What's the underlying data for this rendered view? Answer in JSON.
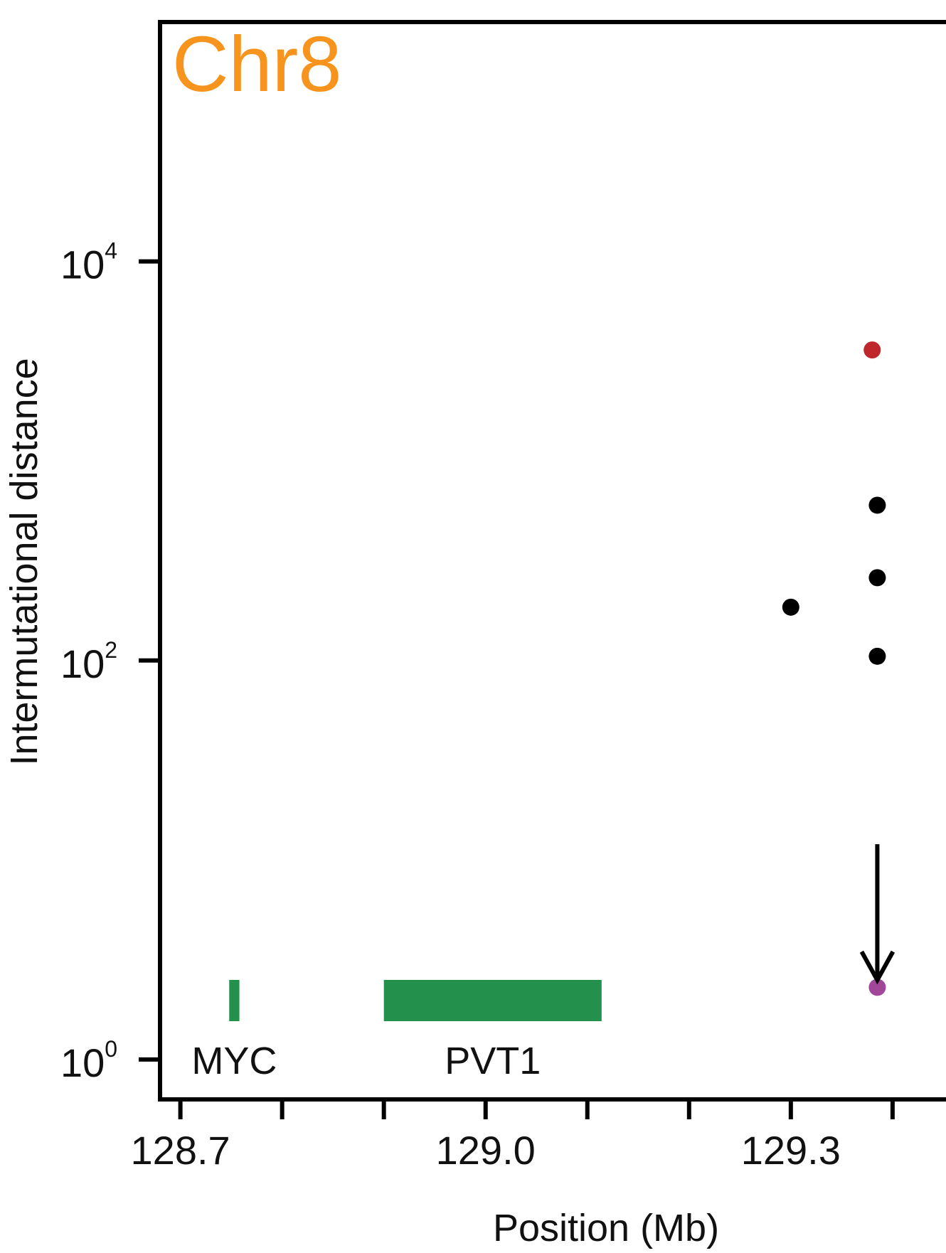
{
  "chart_data": {
    "type": "scatter",
    "title": "Chr8",
    "title_color": "#f7941d",
    "xlabel": "Position (Mb)",
    "ylabel": "Intermutational distance",
    "xlim": [
      128.68,
      129.47
    ],
    "ylim_log10": [
      -0.2,
      5.2
    ],
    "y_scale": "log",
    "x_ticks": [
      128.7,
      128.8,
      128.9,
      129.0,
      129.1,
      129.2,
      129.3,
      129.4
    ],
    "x_tick_labels": [
      {
        "value": 128.7,
        "label": "128.7"
      },
      {
        "value": 129.0,
        "label": "129.0"
      },
      {
        "value": 129.3,
        "label": "129.3"
      }
    ],
    "y_tick_labels": [
      {
        "exp": 0,
        "base": "10",
        "sup": "0"
      },
      {
        "exp": 2,
        "base": "10",
        "sup": "2"
      },
      {
        "exp": 4,
        "base": "10",
        "sup": "4"
      }
    ],
    "points": [
      {
        "x": 129.38,
        "y": 3600,
        "color": "#c0272d"
      },
      {
        "x": 129.385,
        "y": 600,
        "color": "#000000"
      },
      {
        "x": 129.385,
        "y": 260,
        "color": "#000000"
      },
      {
        "x": 129.3,
        "y": 185,
        "color": "#000000"
      },
      {
        "x": 129.385,
        "y": 105,
        "color": "#000000"
      },
      {
        "x": 129.385,
        "y": 2.3,
        "color": "#a0479a"
      }
    ],
    "genes": [
      {
        "name": "MYC",
        "start": 128.748,
        "end": 128.758
      },
      {
        "name": "PVT1",
        "start": 128.9,
        "end": 129.114
      }
    ],
    "gene_color": "#23904b",
    "arrow": {
      "x": 129.385,
      "from": 12,
      "to": 2.5
    }
  }
}
